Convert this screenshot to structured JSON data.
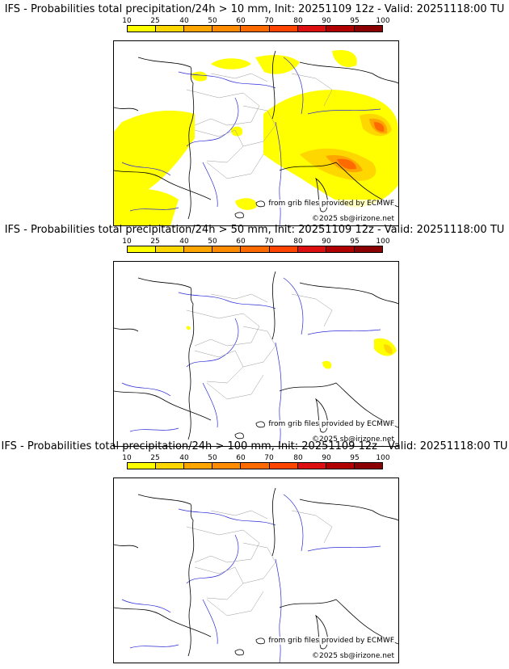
{
  "legend": {
    "ticks": [
      "10",
      "25",
      "40",
      "50",
      "60",
      "70",
      "80",
      "90",
      "95",
      "100"
    ],
    "colors": [
      "#ffff00",
      "#ffd700",
      "#ffa500",
      "#ff8c00",
      "#ff6a00",
      "#ff4500",
      "#dc1010",
      "#b00000",
      "#8b0000",
      "#500000"
    ]
  },
  "panels": [
    {
      "title": "IFS - Probabilities total precipitation/24h > 10 mm, Init: 20251109 12z - Valid: 20251118:00 TU",
      "source_credit": "from grib files provided by ECMWF",
      "copyright": "©2025 sb@irizone.net"
    },
    {
      "title": "IFS - Probabilities total precipitation/24h > 50 mm, Init: 20251109 12z - Valid: 20251118:00 TU",
      "source_credit": "from grib files provided by ECMWF",
      "copyright": "©2025 sb@irizone.net"
    },
    {
      "title": "IFS - Probabilities total precipitation/24h > 100 mm, Init: 20251109 12z - Valid: 20251118:00 TU",
      "source_credit": "from grib files provided by ECMWF",
      "copyright": "©2025 sb@irizone.net"
    }
  ]
}
